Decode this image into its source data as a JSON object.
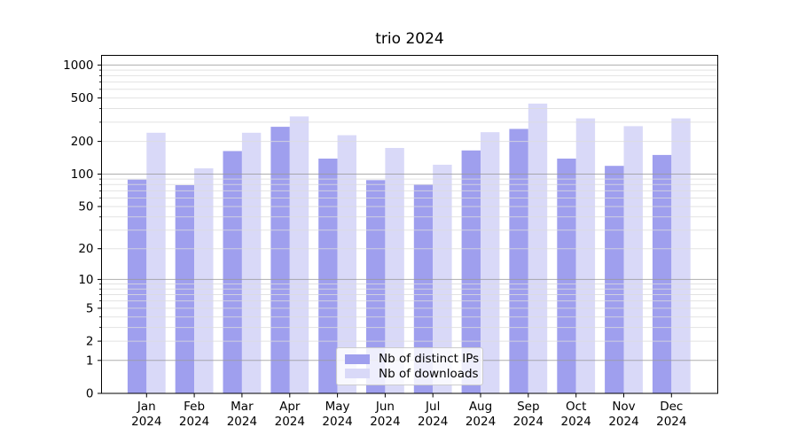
{
  "figure": {
    "title": "trio 2024",
    "background_color": "#ffffff"
  },
  "chart_data": {
    "type": "bar",
    "title": "trio 2024",
    "yscale": "log1p",
    "grid": true,
    "legend_position": "lower center",
    "categories": [
      "Jan",
      "Feb",
      "Mar",
      "Apr",
      "May",
      "Jun",
      "Jul",
      "Aug",
      "Sep",
      "Oct",
      "Nov",
      "Dec"
    ],
    "category_year": "2024",
    "series": [
      {
        "name": "Nb of distinct IPs",
        "color": "#9f9fee",
        "values": [
          89,
          79,
          163,
          272,
          139,
          88,
          80,
          165,
          260,
          139,
          119,
          150
        ]
      },
      {
        "name": "Nb of downloads",
        "color": "#d9d9f8",
        "values": [
          240,
          113,
          240,
          339,
          228,
          174,
          122,
          243,
          444,
          325,
          276,
          325
        ]
      }
    ],
    "y_ticks": [
      0,
      1,
      2,
      5,
      10,
      20,
      50,
      100,
      200,
      500,
      1000
    ],
    "ylim": [
      0,
      1220
    ],
    "xlabel": "",
    "ylabel": "",
    "grid_major_color": "#9a9a9a",
    "grid_minor_color": "#dcdcdc",
    "axis_color": "#000000"
  }
}
